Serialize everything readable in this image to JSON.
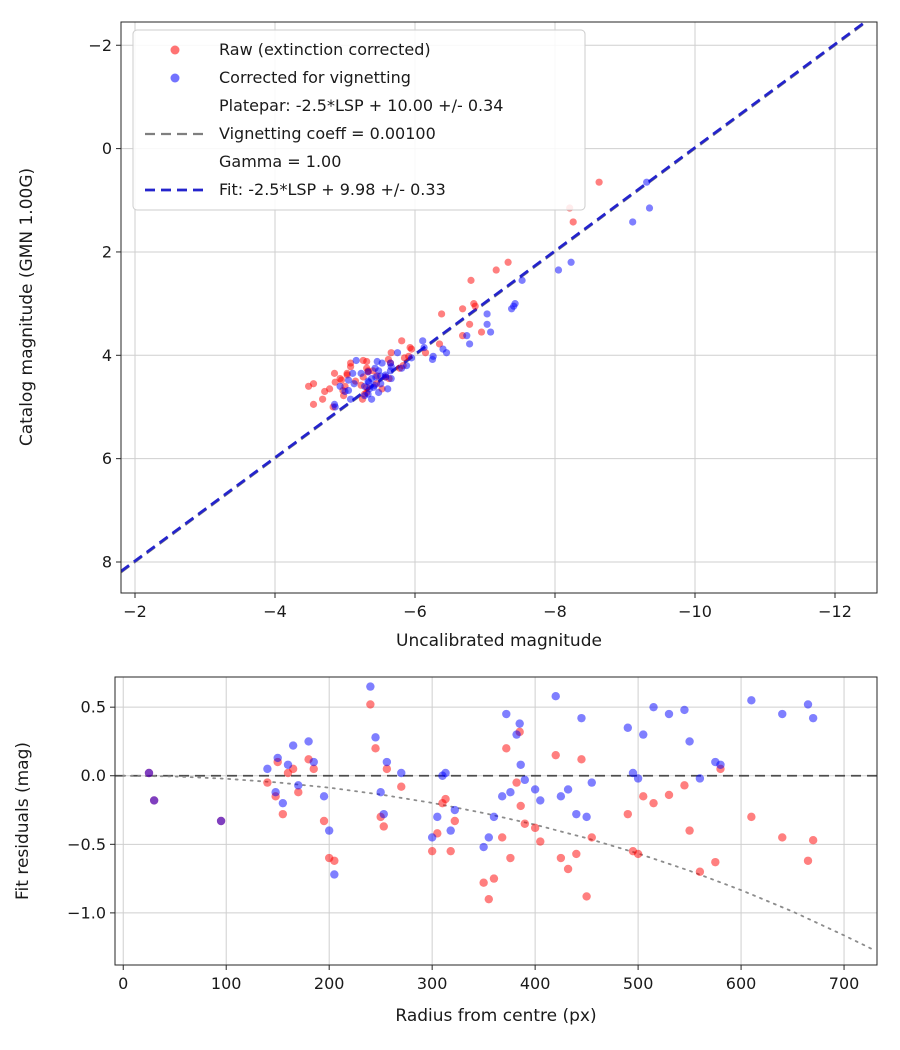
{
  "figure": {
    "background": "#ffffff",
    "description": "Photometric calibration: catalog vs uncalibrated magnitude with fit, and fit residuals vs radius"
  },
  "colors": {
    "raw_points": "#ff0000",
    "corrected_points": "#0000ff",
    "fit_line": "#2424cc",
    "platepar_line": "#7f7f7f",
    "zero_line": "#4d4d4d",
    "vignetting_curve": "#8c8c8c",
    "grid": "#cfcfcf",
    "spine": "#262626"
  },
  "chart_data": [
    {
      "type": "scatter",
      "title": "",
      "xlabel": "Uncalibrated magnitude",
      "ylabel": "Catalog magnitude (GMN 1.00G)",
      "x_range": [
        -1.8,
        -12.6
      ],
      "y_range": [
        -2.45,
        8.6
      ],
      "x_ticks": [
        -2,
        -4,
        -6,
        -8,
        -10,
        -12
      ],
      "x_tick_labels": [
        "−2",
        "−4",
        "−6",
        "−8",
        "−10",
        "−12"
      ],
      "y_ticks": [
        -2,
        0,
        2,
        4,
        6,
        8
      ],
      "y_tick_labels": [
        "−2",
        "0",
        "2",
        "4",
        "6",
        "8"
      ],
      "grid": true,
      "legend": {
        "position": "upper left",
        "entries": [
          {
            "marker": "dot",
            "color": "#ff0000",
            "label": "Raw (extinction corrected)"
          },
          {
            "marker": "dot",
            "color": "#0000ff",
            "label": "Corrected for vignetting"
          },
          {
            "marker": "dashed-line",
            "color": "#7f7f7f",
            "width": 2.2,
            "label": "Platepar: -2.5*LSP + 10.00 +/- 0.34\nVignetting coeff = 0.00100\nGamma = 1.00"
          },
          {
            "marker": "dashed-line",
            "color": "#2424cc",
            "width": 2.8,
            "label": "Fit: -2.5*LSP + 9.98 +/- 0.33"
          }
        ]
      },
      "lines": [
        {
          "name": "platepar-line",
          "style": "dashed",
          "color": "#7f7f7f",
          "width": 2.2,
          "x": [
            -1.8,
            -12.6
          ],
          "y": [
            8.2,
            -2.6
          ]
        },
        {
          "name": "fit-line",
          "style": "dashed",
          "color": "#2424cc",
          "width": 2.8,
          "x": [
            -1.8,
            -12.6
          ],
          "y": [
            8.18,
            -2.62
          ]
        }
      ],
      "series": [
        {
          "name": "Raw (extinction corrected)",
          "color": "#ff0000",
          "opacity": 0.5,
          "marker_size": 3.6,
          "x": [
            -8.63,
            -8.21,
            -8.26,
            -7.33,
            -7.16,
            -6.8,
            -6.84,
            -6.86,
            -6.68,
            -6.38,
            -5.31,
            -5.63,
            -5.4,
            -5.45,
            -5.31,
            -5.46,
            -5.25,
            -5.83,
            -5.15,
            -5.03,
            -5.26,
            -6.95,
            -5.53,
            -5.26,
            -5.66,
            -5.28,
            -5.85,
            -4.95,
            -5.31,
            -5.93,
            -5.23,
            -5.31,
            -4.97,
            -4.85,
            -4.48,
            -5.08,
            -5.81,
            -6.78,
            -4.86,
            -5.91,
            -4.98,
            -6.68,
            -5.33,
            -5.0,
            -4.55,
            -6.35,
            -4.93,
            -5.08,
            -4.71,
            -6.15,
            -4.55,
            -4.68,
            -5.62,
            -4.78,
            -5.03,
            -5.95,
            -5.78,
            -5.58,
            -5.65,
            -5.33,
            -4.83
          ],
          "y": [
            0.65,
            1.15,
            1.42,
            2.2,
            2.35,
            2.55,
            3.0,
            3.05,
            3.1,
            3.2,
            4.62,
            4.45,
            4.3,
            4.55,
            4.72,
            4.4,
            4.85,
            4.2,
            4.5,
            4.35,
            4.1,
            3.55,
            4.65,
            4.42,
            3.95,
            4.75,
            4.05,
            4.48,
            4.25,
            3.85,
            4.58,
            4.12,
            4.68,
            4.35,
            4.6,
            4.15,
            3.72,
            3.4,
            4.52,
            4.02,
            4.78,
            3.62,
            4.3,
            4.6,
            4.95,
            3.78,
            4.45,
            4.22,
            4.7,
            3.95,
            4.55,
            4.85,
            4.08,
            4.65,
            4.38,
            3.88,
            4.25,
            4.42,
            4.15,
            4.32,
            5.0
          ]
        },
        {
          "name": "Corrected for vignetting",
          "color": "#0000ff",
          "opacity": 0.5,
          "marker_size": 3.6,
          "x": [
            -9.31,
            -9.35,
            -9.11,
            -8.23,
            -8.05,
            -7.53,
            -7.43,
            -7.41,
            -7.38,
            -7.03,
            -5.41,
            -5.66,
            -5.48,
            -5.51,
            -5.48,
            -5.51,
            -5.38,
            -5.88,
            -5.33,
            -5.23,
            -5.16,
            -7.08,
            -5.61,
            -5.44,
            -5.75,
            -5.33,
            -5.95,
            -5.05,
            -5.43,
            -6.13,
            -5.42,
            -5.46,
            -5.05,
            -5.11,
            -4.93,
            -5.53,
            -6.11,
            -7.03,
            -5.34,
            -6.26,
            -5.28,
            -6.74,
            -5.65,
            -5.28,
            -4.85,
            -6.78,
            -5.38,
            -5.66,
            -5.0,
            -6.45,
            -5.13,
            -5.08,
            -6.25,
            -5.35,
            -5.58,
            -6.4,
            -5.81,
            -5.58,
            -5.65,
            -5.33,
            -4.86
          ],
          "y": [
            0.65,
            1.15,
            1.42,
            2.2,
            2.35,
            2.55,
            3.0,
            3.05,
            3.1,
            3.2,
            4.62,
            4.45,
            4.3,
            4.55,
            4.72,
            4.4,
            4.85,
            4.2,
            4.5,
            4.35,
            4.1,
            3.55,
            4.65,
            4.42,
            3.95,
            4.75,
            4.05,
            4.48,
            4.25,
            3.85,
            4.58,
            4.12,
            4.68,
            4.35,
            4.6,
            4.15,
            3.72,
            3.4,
            4.52,
            4.02,
            4.78,
            3.62,
            4.3,
            4.6,
            4.95,
            3.78,
            4.45,
            4.22,
            4.7,
            3.95,
            4.55,
            4.85,
            4.08,
            4.65,
            4.38,
            3.88,
            4.25,
            4.42,
            4.15,
            4.32,
            5.0
          ]
        }
      ]
    },
    {
      "type": "scatter",
      "title": "",
      "xlabel": "Radius from centre (px)",
      "ylabel": "Fit residuals (mag)",
      "x_range": [
        -8,
        732
      ],
      "y_range": [
        0.72,
        -1.38
      ],
      "x_ticks": [
        0,
        100,
        200,
        300,
        400,
        500,
        600,
        700
      ],
      "x_tick_labels": [
        "0",
        "100",
        "200",
        "300",
        "400",
        "500",
        "600",
        "700"
      ],
      "y_ticks": [
        0.5,
        0.0,
        -0.5,
        -1.0
      ],
      "y_tick_labels": [
        "0.5",
        "0.0",
        "−0.5",
        "−1.0"
      ],
      "grid": true,
      "lines": [
        {
          "name": "zero-residual-line",
          "style": "dashed",
          "color": "#4d4d4d",
          "width": 1.8,
          "x": [
            -8,
            732
          ],
          "y": [
            0,
            0
          ]
        },
        {
          "name": "vignetting-model-curve",
          "style": "dotted",
          "color": "#8c8c8c",
          "width": 1.8,
          "x": [
            0,
            50,
            100,
            150,
            200,
            250,
            300,
            350,
            400,
            450,
            500,
            550,
            600,
            650,
            700,
            730
          ],
          "y": [
            0,
            -0.005,
            -0.022,
            -0.049,
            -0.087,
            -0.137,
            -0.198,
            -0.272,
            -0.357,
            -0.455,
            -0.567,
            -0.693,
            -0.834,
            -0.99,
            -1.164,
            -1.274
          ]
        }
      ],
      "series": [
        {
          "name": "Raw residuals",
          "color": "#ff0000",
          "opacity": 0.5,
          "marker_size": 4.2,
          "x": [
            560,
            665,
            610,
            640,
            670,
            575,
            530,
            545,
            515,
            550,
            140,
            150,
            155,
            160,
            165,
            170,
            180,
            185,
            195,
            200,
            205,
            240,
            245,
            250,
            253,
            256,
            270,
            300,
            305,
            310,
            313,
            318,
            322,
            350,
            355,
            360,
            368,
            372,
            376,
            382,
            386,
            385,
            390,
            400,
            405,
            420,
            425,
            432,
            440,
            445,
            450,
            455,
            490,
            495,
            500,
            505,
            580,
            25,
            30,
            95,
            148
          ],
          "y": [
            -0.7,
            -0.62,
            -0.3,
            -0.45,
            -0.47,
            -0.63,
            -0.14,
            -0.07,
            -0.2,
            -0.4,
            -0.05,
            0.1,
            -0.28,
            0.02,
            0.05,
            -0.12,
            0.12,
            0.05,
            -0.33,
            -0.6,
            -0.62,
            0.52,
            0.2,
            -0.3,
            -0.37,
            0.05,
            -0.08,
            -0.55,
            -0.42,
            -0.2,
            -0.17,
            -0.55,
            -0.33,
            -0.78,
            -0.9,
            -0.75,
            -0.45,
            0.2,
            -0.6,
            -0.05,
            -0.22,
            0.32,
            -0.35,
            -0.38,
            -0.48,
            0.15,
            -0.6,
            -0.68,
            -0.57,
            0.12,
            -0.88,
            -0.45,
            -0.28,
            -0.55,
            -0.57,
            -0.15,
            0.05,
            0.02,
            -0.18,
            -0.33,
            -0.15
          ]
        },
        {
          "name": "Corrected residuals",
          "color": "#0000ff",
          "opacity": 0.5,
          "marker_size": 4.2,
          "x": [
            560,
            665,
            610,
            640,
            670,
            575,
            530,
            545,
            515,
            550,
            140,
            150,
            155,
            160,
            165,
            170,
            180,
            185,
            195,
            200,
            205,
            240,
            245,
            250,
            253,
            256,
            270,
            300,
            305,
            310,
            313,
            318,
            322,
            350,
            355,
            360,
            368,
            372,
            376,
            382,
            386,
            385,
            390,
            400,
            405,
            420,
            425,
            432,
            440,
            445,
            450,
            455,
            490,
            495,
            500,
            505,
            580,
            25,
            30,
            95,
            148
          ],
          "y": [
            -0.02,
            0.52,
            0.55,
            0.45,
            0.42,
            0.1,
            0.45,
            0.48,
            0.5,
            0.25,
            0.05,
            0.13,
            -0.2,
            0.08,
            0.22,
            -0.07,
            0.25,
            0.1,
            -0.15,
            -0.4,
            -0.72,
            0.65,
            0.28,
            -0.12,
            -0.28,
            0.1,
            0.02,
            -0.45,
            -0.3,
            0.0,
            0.02,
            -0.4,
            -0.25,
            -0.52,
            -0.45,
            -0.3,
            -0.15,
            0.45,
            -0.12,
            0.3,
            0.08,
            0.38,
            -0.03,
            -0.1,
            -0.18,
            0.58,
            -0.15,
            -0.1,
            -0.28,
            0.42,
            -0.3,
            -0.05,
            0.35,
            0.02,
            -0.02,
            0.3,
            0.08,
            0.02,
            -0.18,
            -0.33,
            -0.12
          ]
        }
      ]
    }
  ]
}
